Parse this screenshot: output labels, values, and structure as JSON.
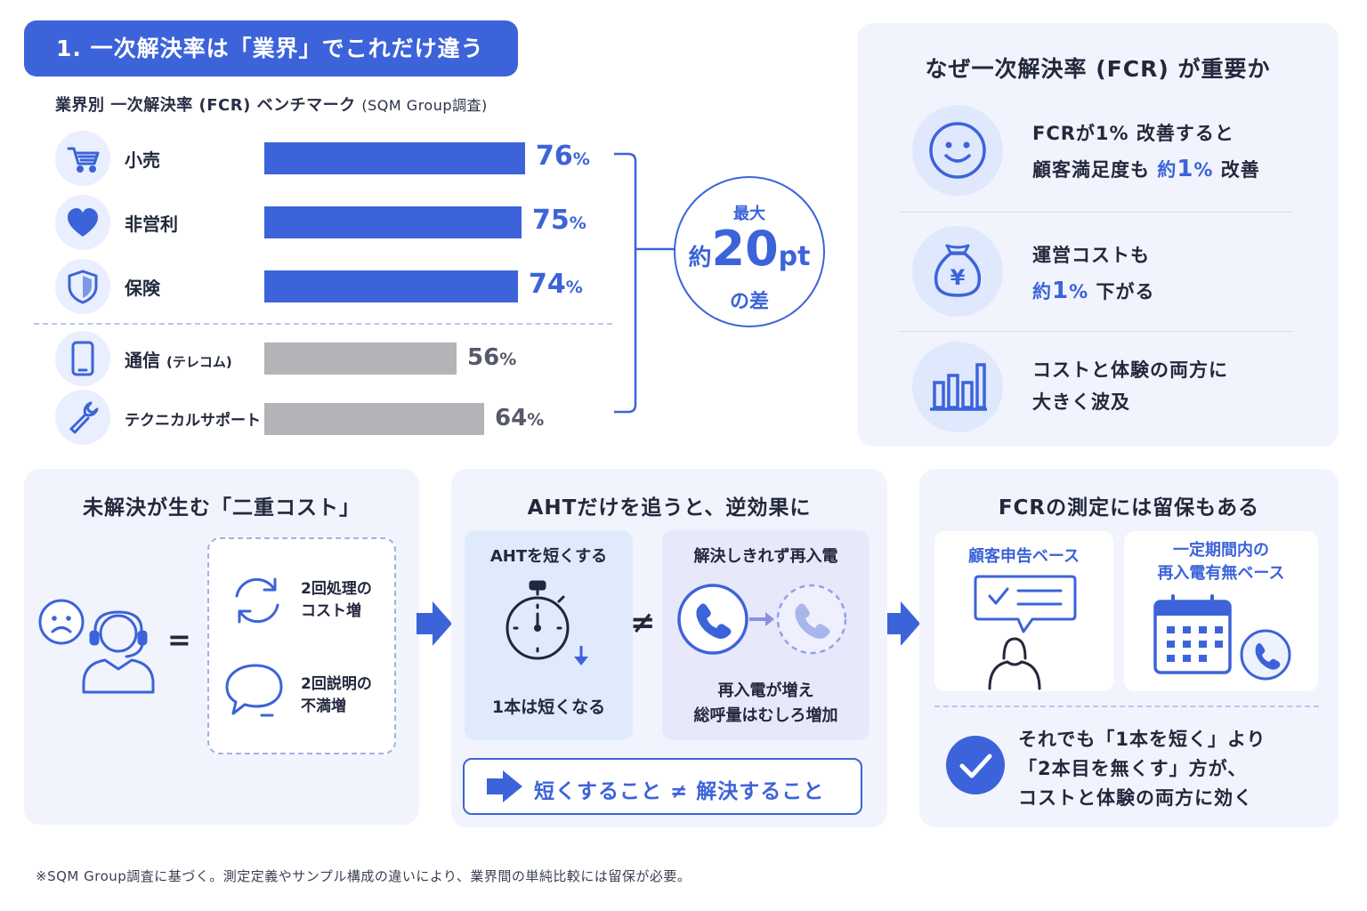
{
  "header": {
    "badge": "1. 一次解決率は「業界」でこれだけ違う",
    "subtitle": "業界別 一次解決率 (FCR) ベンチマーク",
    "subtitle_source": "(SQM Group調査)"
  },
  "chart_data": {
    "type": "bar",
    "orientation": "horizontal",
    "title": "業界別 一次解決率 (FCR) ベンチマーク",
    "source": "(SQM Group調査)",
    "unit": "%",
    "categories": [
      "小売",
      "非営利",
      "保険",
      "通信",
      "テクニカルサポート"
    ],
    "category_notes": [
      "",
      "",
      "",
      "(テレコム)",
      ""
    ],
    "values": [
      76,
      75,
      74,
      56,
      64
    ],
    "value_labels": [
      "76",
      "75",
      "74",
      "56",
      "64"
    ],
    "colors": [
      "#3c63d9",
      "#3c63d9",
      "#3c63d9",
      "#b3b3b8",
      "#b3b3b8"
    ],
    "icons": [
      "cart-icon",
      "heart-icon",
      "shield-icon",
      "phone-icon",
      "wrench-icon"
    ],
    "callout": {
      "line1": "最大",
      "prefix": "約",
      "number": "20",
      "unit": "pt",
      "line3": "の差"
    }
  },
  "why_panel": {
    "title": "なぜ一次解決率 (FCR) が重要か",
    "items": [
      {
        "icon": "smiley-icon",
        "line1": "FCRが1% 改善すると",
        "line2_pre": "顧客満足度も ",
        "line2_hl_pre": "約",
        "line2_hl_num": "1",
        "line2_hl_unit": "%",
        "line2_post": " 改善"
      },
      {
        "icon": "money-bag-icon",
        "line1": "運営コストも",
        "line2_pre": "",
        "line2_hl_pre": "約",
        "line2_hl_num": "1",
        "line2_hl_unit": "%",
        "line2_post": " 下がる"
      },
      {
        "icon": "bar-chart-icon",
        "line1": "コストと体験の両方に",
        "line2": "大きく波及"
      }
    ]
  },
  "double_cost": {
    "title": "未解決が生む「二重コスト」",
    "equals": "=",
    "items": [
      {
        "icon": "refresh-icon",
        "line1": "2回処理の",
        "line2": "コスト増"
      },
      {
        "icon": "speech-bubble-icon",
        "line1": "2回説明の",
        "line2": "不満増"
      }
    ]
  },
  "aht_panel": {
    "title": "AHTだけを追うと、逆効果に",
    "left_title": "AHTを短くする",
    "left_caption": "1本は短くなる",
    "not_equal": "≠",
    "right_title": "解決しきれず再入電",
    "right_caption1": "再入電が増え",
    "right_caption2": "総呼量はむしろ増加",
    "banner": "短くすること ≠ 解決すること"
  },
  "fcr_measure": {
    "title": "FCRの測定には留保もある",
    "method1": "顧客申告ベース",
    "method2_line1": "一定期間内の",
    "method2_line2": "再入電有無ベース",
    "conclusion_line1": "それでも「1本を短く」より",
    "conclusion_line2": "「2本目を無くす」方が、",
    "conclusion_line3": "コストと体験の両方に効く"
  },
  "footnote": "※SQM Group調査に基づく。測定定義やサンプル構成の違いにより、業界間の単純比較には留保が必要。",
  "colors": {
    "accent": "#3c63d9",
    "gray_bar": "#b3b3b8",
    "panel": "#f1f4fc",
    "light_blue": "#e9efff"
  }
}
